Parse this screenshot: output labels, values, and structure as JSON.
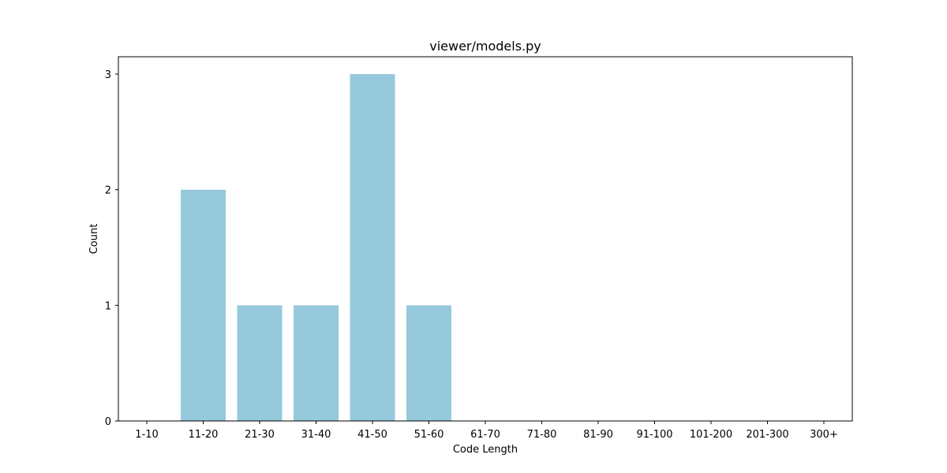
{
  "chart_data": {
    "type": "bar",
    "title": "viewer/models.py",
    "xlabel": "Code Length",
    "ylabel": "Count",
    "categories": [
      "1-10",
      "11-20",
      "21-30",
      "31-40",
      "41-50",
      "51-60",
      "61-70",
      "71-80",
      "81-90",
      "91-100",
      "101-200",
      "201-300",
      "300+"
    ],
    "values": [
      0,
      2,
      1,
      1,
      3,
      1,
      0,
      0,
      0,
      0,
      0,
      0,
      0
    ],
    "yticks": [
      "0",
      "1",
      "2",
      "3"
    ],
    "ylim": [
      0,
      3.15
    ],
    "grid": false,
    "bar_color": "#96c9dc",
    "axis_color": "#000000"
  }
}
